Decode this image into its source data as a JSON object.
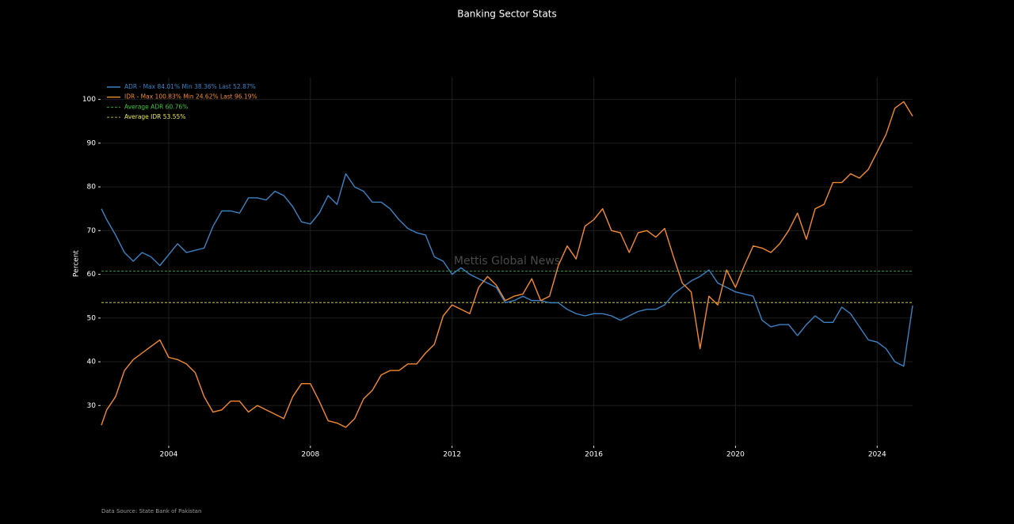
{
  "chart_data": {
    "type": "line",
    "title": "Banking Sector Stats",
    "ylabel": "Percent",
    "watermark": "Mettis Global News",
    "source": "Data Source: State Bank of Pakistan",
    "xlim": [
      2002.1,
      2025.0
    ],
    "xticks": [
      2004,
      2008,
      2012,
      2016,
      2020,
      2024
    ],
    "ylim": [
      21,
      105
    ],
    "yticks": [
      30,
      40,
      50,
      60,
      70,
      80,
      90,
      100
    ],
    "grid": true,
    "legend": "upper left",
    "x": [
      2002.1,
      2002.25,
      2002.5,
      2002.75,
      2003.0,
      2003.25,
      2003.5,
      2003.75,
      2004.0,
      2004.25,
      2004.5,
      2004.75,
      2005.0,
      2005.25,
      2005.5,
      2005.75,
      2006.0,
      2006.25,
      2006.5,
      2006.75,
      2007.0,
      2007.25,
      2007.5,
      2007.75,
      2008.0,
      2008.25,
      2008.5,
      2008.75,
      2009.0,
      2009.25,
      2009.5,
      2009.75,
      2010.0,
      2010.25,
      2010.5,
      2010.75,
      2011.0,
      2011.25,
      2011.5,
      2011.75,
      2012.0,
      2012.25,
      2012.5,
      2012.75,
      2013.0,
      2013.25,
      2013.5,
      2013.75,
      2014.0,
      2014.25,
      2014.5,
      2014.75,
      2015.0,
      2015.25,
      2015.5,
      2015.75,
      2016.0,
      2016.25,
      2016.5,
      2016.75,
      2017.0,
      2017.25,
      2017.5,
      2017.75,
      2018.0,
      2018.25,
      2018.5,
      2018.75,
      2019.0,
      2019.25,
      2019.5,
      2019.75,
      2020.0,
      2020.25,
      2020.5,
      2020.75,
      2021.0,
      2021.25,
      2021.5,
      2021.75,
      2022.0,
      2022.25,
      2022.5,
      2022.75,
      2023.0,
      2023.25,
      2023.5,
      2023.75,
      2024.0,
      2024.25,
      2024.5,
      2024.75,
      2025.0
    ],
    "series": [
      {
        "name": "ADR - Max 84.01% Min 38.36% Last 52.87%",
        "color": "#3b82c4",
        "values": [
          75,
          72.5,
          69,
          65,
          63,
          65,
          64,
          62,
          64.5,
          67,
          65,
          65.5,
          66,
          71,
          74.5,
          74.5,
          74,
          77.5,
          77.5,
          77,
          79,
          78,
          75.5,
          72,
          71.5,
          74,
          78,
          76,
          83,
          80,
          79,
          76.5,
          76.5,
          75,
          72.5,
          70.5,
          69.5,
          69,
          64,
          63,
          60,
          61.5,
          60,
          59,
          58,
          57,
          53.5,
          54,
          55,
          54,
          54,
          53.5,
          53.5,
          52,
          51,
          50.5,
          51,
          51,
          50.5,
          49.5,
          50.5,
          51.5,
          52,
          52,
          53,
          55.5,
          57,
          58.5,
          59.5,
          61,
          58,
          57,
          56,
          55.5,
          55,
          49.5,
          48,
          48.5,
          48.5,
          46,
          48.5,
          50.5,
          49,
          49,
          52.5,
          51,
          48,
          45,
          44.5,
          43,
          40,
          39,
          52.87
        ]
      },
      {
        "name": "IDR - Max 100.83% Min 24.62% Last 96.19%",
        "color": "#f5892e",
        "values": [
          25.5,
          29,
          32,
          38,
          40.5,
          42,
          43.5,
          45,
          41,
          40.5,
          39.5,
          37.5,
          32,
          28.5,
          29,
          31,
          31,
          28.5,
          30,
          29,
          28,
          27,
          32,
          35,
          35,
          31,
          26.5,
          26,
          25,
          27,
          31.5,
          33.5,
          37,
          38,
          38,
          39.5,
          39.5,
          42,
          44,
          50.5,
          53,
          52,
          51,
          57,
          59.5,
          57.5,
          54,
          55,
          55.5,
          59,
          54,
          55,
          62,
          66.5,
          63.5,
          71,
          72.5,
          75,
          70,
          69.5,
          65,
          69.5,
          70,
          68.5,
          70.5,
          64,
          58,
          56,
          43,
          55,
          53,
          61,
          57,
          62,
          66.5,
          66,
          65,
          67,
          70,
          74,
          68,
          75,
          76,
          81,
          81,
          83,
          82,
          84,
          88,
          92,
          98,
          99.5,
          96.19
        ]
      }
    ],
    "reference_lines": [
      {
        "name": "Average ADR 60.76%",
        "value": 60.76,
        "color": "#3ec43e"
      },
      {
        "name": "Average IDR 53.55%",
        "value": 53.55,
        "color": "#e6e64c"
      }
    ]
  }
}
